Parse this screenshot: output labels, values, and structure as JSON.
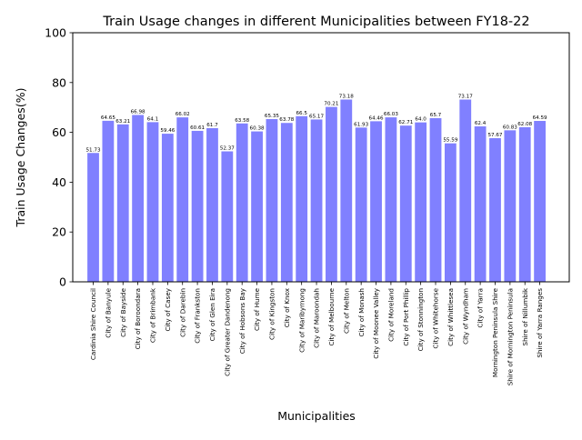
{
  "chart_data": {
    "type": "bar",
    "title": "Train Usage changes in different Municipalities between FY18-22",
    "xlabel": "Municipalities",
    "ylabel": "Train Usage Changes(%)",
    "ylim": [
      0,
      100
    ],
    "yticks": [
      0,
      20,
      40,
      60,
      80,
      100
    ],
    "grid": false,
    "bar_color": "#8080ff",
    "categories": [
      "Cardinia Shire Council",
      "City of Banyule",
      "City of Bayside",
      "City of Boroondara",
      "City of Brimbank",
      "City of Casey",
      "City of Darebin",
      "City of Frankston",
      "City of Glen Eira",
      "City of Greater Dandenong",
      "City of Hobsons Bay",
      "City of Hume",
      "City of Kingston",
      "City of Knox",
      "City of Maribyrnong",
      "City of Maroondah",
      "City of Melbourne",
      "City of Melton",
      "City of Monash",
      "City of Moonee Valley",
      "City of Moreland",
      "City of Port Phillip",
      "City of Stonnington",
      "City of Whitehorse",
      "City of Whittlesea",
      "City of Wyndham",
      "City of Yarra",
      "Mornington Peninsula Shire",
      "Shire of Mornington Peninsula",
      "Shire of Nillumbik",
      "Shire of Yarra Ranges"
    ],
    "values": [
      51.73,
      64.65,
      63.21,
      66.98,
      64.1,
      59.46,
      66.02,
      60.61,
      61.7,
      52.37,
      63.58,
      60.38,
      65.35,
      63.78,
      66.5,
      65.17,
      70.21,
      73.18,
      61.93,
      64.46,
      66.03,
      62.71,
      64.0,
      65.7,
      55.59,
      73.17,
      62.4,
      57.67,
      60.83,
      62.08,
      64.59
    ],
    "value_labels": [
      "51.73",
      "64.65",
      "63.21",
      "66.98",
      "64.1",
      "59.46",
      "66.02",
      "60.61",
      "61.7",
      "52.37",
      "63.58",
      "60.38",
      "65.35",
      "63.78",
      "66.5",
      "65.17",
      "70.21",
      "73.18",
      "61.93",
      "64.46",
      "66.03",
      "62.71",
      "64.0",
      "65.7",
      "55.59",
      "73.17",
      "62.4",
      "57.67",
      "60.83",
      "62.08",
      "64.59"
    ]
  }
}
